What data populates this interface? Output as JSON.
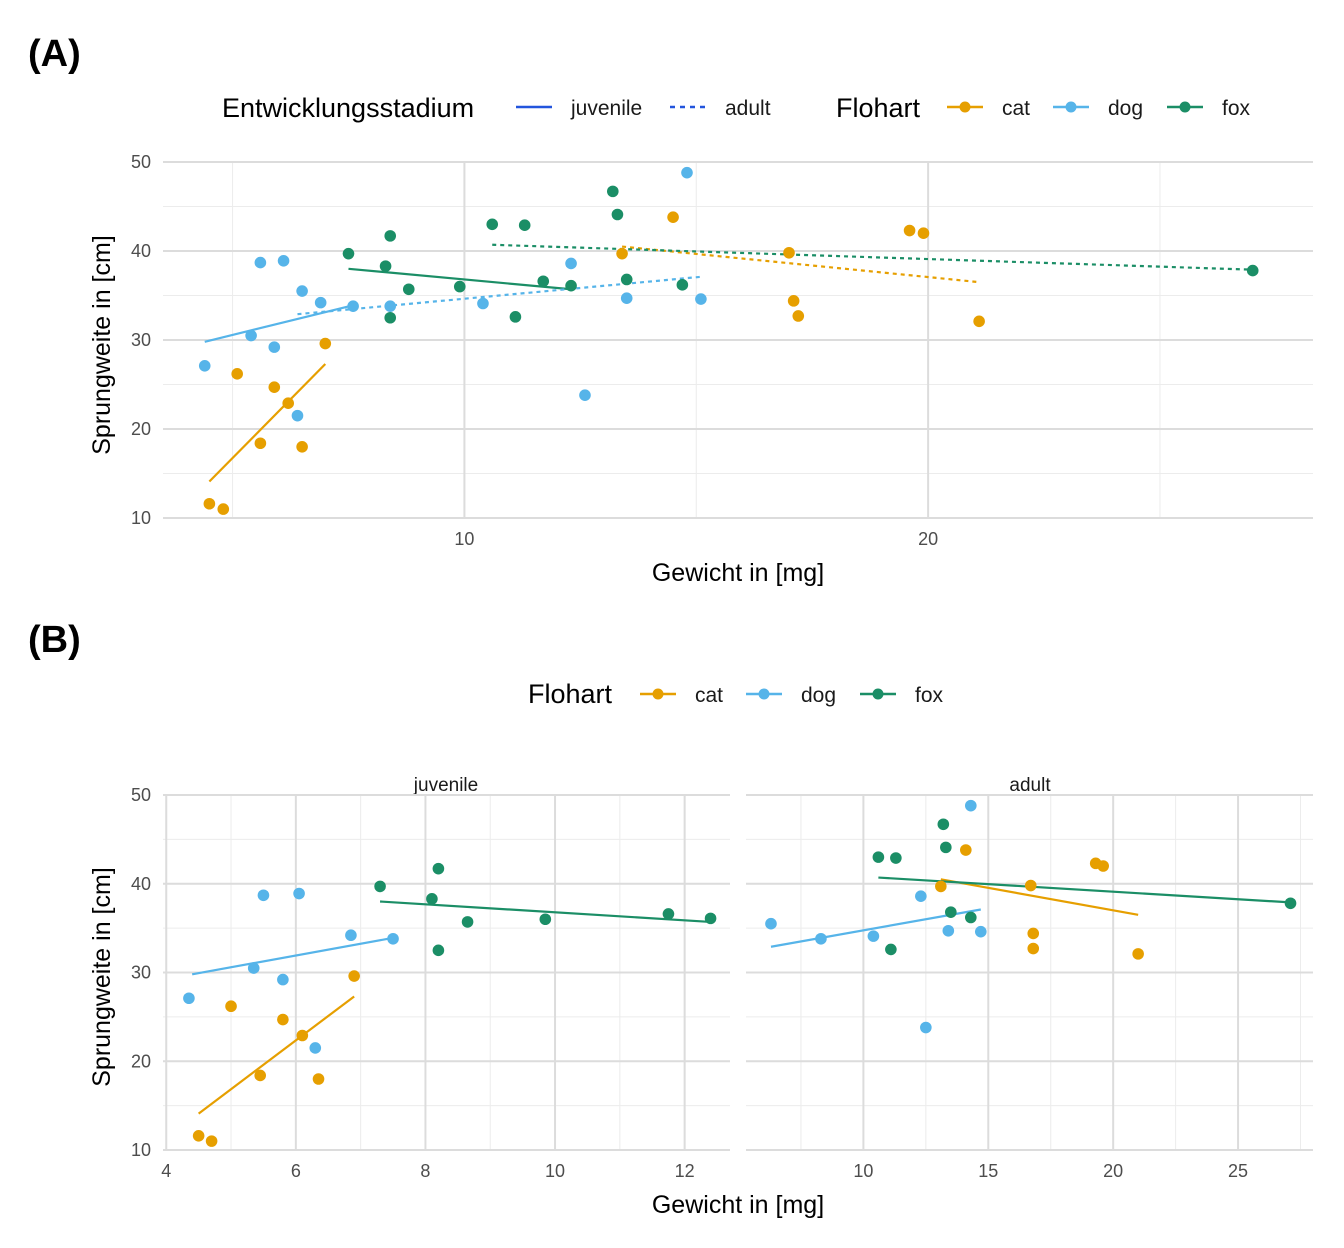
{
  "colors": {
    "cat": "#E69F00",
    "dog": "#56B4E9",
    "fox": "#1B8E66",
    "stage_legend": "#2255DD"
  },
  "panelA": {
    "tag": "(A)",
    "legend": {
      "stage_title": "Entwicklungsstadium",
      "stage_items": [
        "juvenile",
        "adult"
      ],
      "species_title": "Flohart",
      "species_items": [
        "cat",
        "dog",
        "fox"
      ]
    }
  },
  "panelB": {
    "tag": "(B)",
    "legend": {
      "species_title": "Flohart",
      "species_items": [
        "cat",
        "dog",
        "fox"
      ]
    },
    "facets": [
      "juvenile",
      "adult"
    ]
  },
  "chart_data": [
    {
      "type": "scatter",
      "panel": "A",
      "xlabel": "Gewicht in [mg]",
      "ylabel": "Sprungweite in [cm]",
      "xlim": [
        3.5,
        28.3
      ],
      "ylim": [
        10,
        50
      ],
      "xticks": [
        10,
        20
      ],
      "yticks": [
        10,
        20,
        30,
        40,
        50
      ],
      "points": {
        "cat": [
          [
            4.5,
            11.6
          ],
          [
            4.8,
            11.0
          ],
          [
            5.1,
            26.2
          ],
          [
            5.6,
            18.4
          ],
          [
            5.9,
            24.7
          ],
          [
            6.2,
            22.9
          ],
          [
            6.5,
            18.0
          ],
          [
            7.0,
            29.6
          ],
          [
            13.4,
            39.7
          ],
          [
            14.5,
            43.8
          ],
          [
            17.0,
            39.8
          ],
          [
            17.1,
            34.4
          ],
          [
            17.2,
            32.7
          ],
          [
            19.6,
            42.3
          ],
          [
            19.9,
            42.0
          ],
          [
            21.1,
            32.1
          ]
        ],
        "dog": [
          [
            4.4,
            27.1
          ],
          [
            5.4,
            30.5
          ],
          [
            5.6,
            38.7
          ],
          [
            5.9,
            29.2
          ],
          [
            6.1,
            38.9
          ],
          [
            6.4,
            21.5
          ],
          [
            6.5,
            35.5
          ],
          [
            6.9,
            34.2
          ],
          [
            7.6,
            33.8
          ],
          [
            8.4,
            33.8
          ],
          [
            10.4,
            34.1
          ],
          [
            12.3,
            38.6
          ],
          [
            12.6,
            23.8
          ],
          [
            13.5,
            34.7
          ],
          [
            14.8,
            48.8
          ],
          [
            15.1,
            34.6
          ]
        ],
        "fox": [
          [
            7.5,
            39.7
          ],
          [
            8.3,
            38.3
          ],
          [
            8.4,
            32.5
          ],
          [
            8.4,
            41.7
          ],
          [
            8.8,
            35.7
          ],
          [
            9.9,
            36.0
          ],
          [
            10.6,
            43.0
          ],
          [
            11.1,
            32.6
          ],
          [
            11.3,
            42.9
          ],
          [
            11.7,
            36.6
          ],
          [
            12.3,
            36.1
          ],
          [
            13.2,
            46.7
          ],
          [
            13.3,
            44.1
          ],
          [
            13.5,
            36.8
          ],
          [
            14.7,
            36.2
          ],
          [
            27.0,
            37.8
          ]
        ]
      },
      "fits": [
        {
          "species": "cat",
          "stage": "juvenile",
          "x": [
            4.5,
            7.0
          ],
          "y": [
            14.1,
            27.3
          ]
        },
        {
          "species": "dog",
          "stage": "juvenile",
          "x": [
            4.4,
            7.6
          ],
          "y": [
            29.8,
            33.9
          ]
        },
        {
          "species": "fox",
          "stage": "juvenile",
          "x": [
            7.5,
            12.3
          ],
          "y": [
            38.0,
            35.7
          ]
        },
        {
          "species": "cat",
          "stage": "adult",
          "x": [
            13.4,
            21.1
          ],
          "y": [
            40.5,
            36.5
          ]
        },
        {
          "species": "dog",
          "stage": "adult",
          "x": [
            6.4,
            15.1
          ],
          "y": [
            32.9,
            37.1
          ]
        },
        {
          "species": "fox",
          "stage": "adult",
          "x": [
            10.6,
            27.0
          ],
          "y": [
            40.7,
            37.9
          ]
        }
      ]
    },
    {
      "type": "scatter",
      "panel": "B",
      "facet": "juvenile",
      "xlabel": "Gewicht in [mg]",
      "ylabel": "Sprungweite in [cm]",
      "xlim": [
        3.95,
        12.7
      ],
      "ylim": [
        10,
        50
      ],
      "xticks": [
        4,
        6,
        8,
        10,
        12
      ],
      "yticks": [
        10,
        20,
        30,
        40,
        50
      ],
      "points": {
        "cat": [
          [
            4.5,
            11.6
          ],
          [
            4.7,
            11.0
          ],
          [
            5.0,
            26.2
          ],
          [
            5.45,
            18.4
          ],
          [
            5.8,
            24.7
          ],
          [
            6.1,
            22.9
          ],
          [
            6.35,
            18.0
          ],
          [
            6.9,
            29.6
          ]
        ],
        "dog": [
          [
            4.35,
            27.1
          ],
          [
            5.35,
            30.5
          ],
          [
            5.5,
            38.7
          ],
          [
            5.8,
            29.2
          ],
          [
            6.05,
            38.9
          ],
          [
            6.3,
            21.5
          ],
          [
            6.85,
            34.2
          ],
          [
            7.5,
            33.8
          ]
        ],
        "fox": [
          [
            7.3,
            39.7
          ],
          [
            8.1,
            38.3
          ],
          [
            8.2,
            32.5
          ],
          [
            8.2,
            41.7
          ],
          [
            8.65,
            35.7
          ],
          [
            9.85,
            36.0
          ],
          [
            11.75,
            36.6
          ],
          [
            12.4,
            36.1
          ]
        ]
      },
      "fits": [
        {
          "species": "cat",
          "x": [
            4.5,
            6.9
          ],
          "y": [
            14.1,
            27.3
          ]
        },
        {
          "species": "dog",
          "x": [
            4.4,
            7.5
          ],
          "y": [
            29.8,
            33.9
          ]
        },
        {
          "species": "fox",
          "x": [
            7.3,
            12.4
          ],
          "y": [
            38.0,
            35.7
          ]
        }
      ]
    },
    {
      "type": "scatter",
      "panel": "B",
      "facet": "adult",
      "xlabel": "Gewicht in [mg]",
      "ylabel": "Sprungweite in [cm]",
      "xlim": [
        5.3,
        28.0
      ],
      "ylim": [
        10,
        50
      ],
      "xticks": [
        10,
        15,
        20,
        25
      ],
      "yticks": [
        10,
        20,
        30,
        40,
        50
      ],
      "points": {
        "cat": [
          [
            13.1,
            39.7
          ],
          [
            14.1,
            43.8
          ],
          [
            16.7,
            39.8
          ],
          [
            16.8,
            34.4
          ],
          [
            16.8,
            32.7
          ],
          [
            19.3,
            42.3
          ],
          [
            19.6,
            42.0
          ],
          [
            21.0,
            32.1
          ]
        ],
        "dog": [
          [
            6.3,
            35.5
          ],
          [
            8.3,
            33.8
          ],
          [
            10.4,
            34.1
          ],
          [
            12.3,
            38.6
          ],
          [
            12.5,
            23.8
          ],
          [
            13.4,
            34.7
          ],
          [
            14.3,
            48.8
          ],
          [
            14.7,
            34.6
          ]
        ],
        "fox": [
          [
            10.6,
            43.0
          ],
          [
            11.1,
            32.6
          ],
          [
            11.3,
            42.9
          ],
          [
            13.2,
            46.7
          ],
          [
            13.3,
            44.1
          ],
          [
            13.5,
            36.8
          ],
          [
            14.3,
            36.2
          ],
          [
            27.1,
            37.8
          ]
        ]
      },
      "fits": [
        {
          "species": "cat",
          "x": [
            13.1,
            21.0
          ],
          "y": [
            40.5,
            36.5
          ]
        },
        {
          "species": "dog",
          "x": [
            6.3,
            14.7
          ],
          "y": [
            32.9,
            37.1
          ]
        },
        {
          "species": "fox",
          "x": [
            10.6,
            27.1
          ],
          "y": [
            40.7,
            37.9
          ]
        }
      ]
    }
  ]
}
